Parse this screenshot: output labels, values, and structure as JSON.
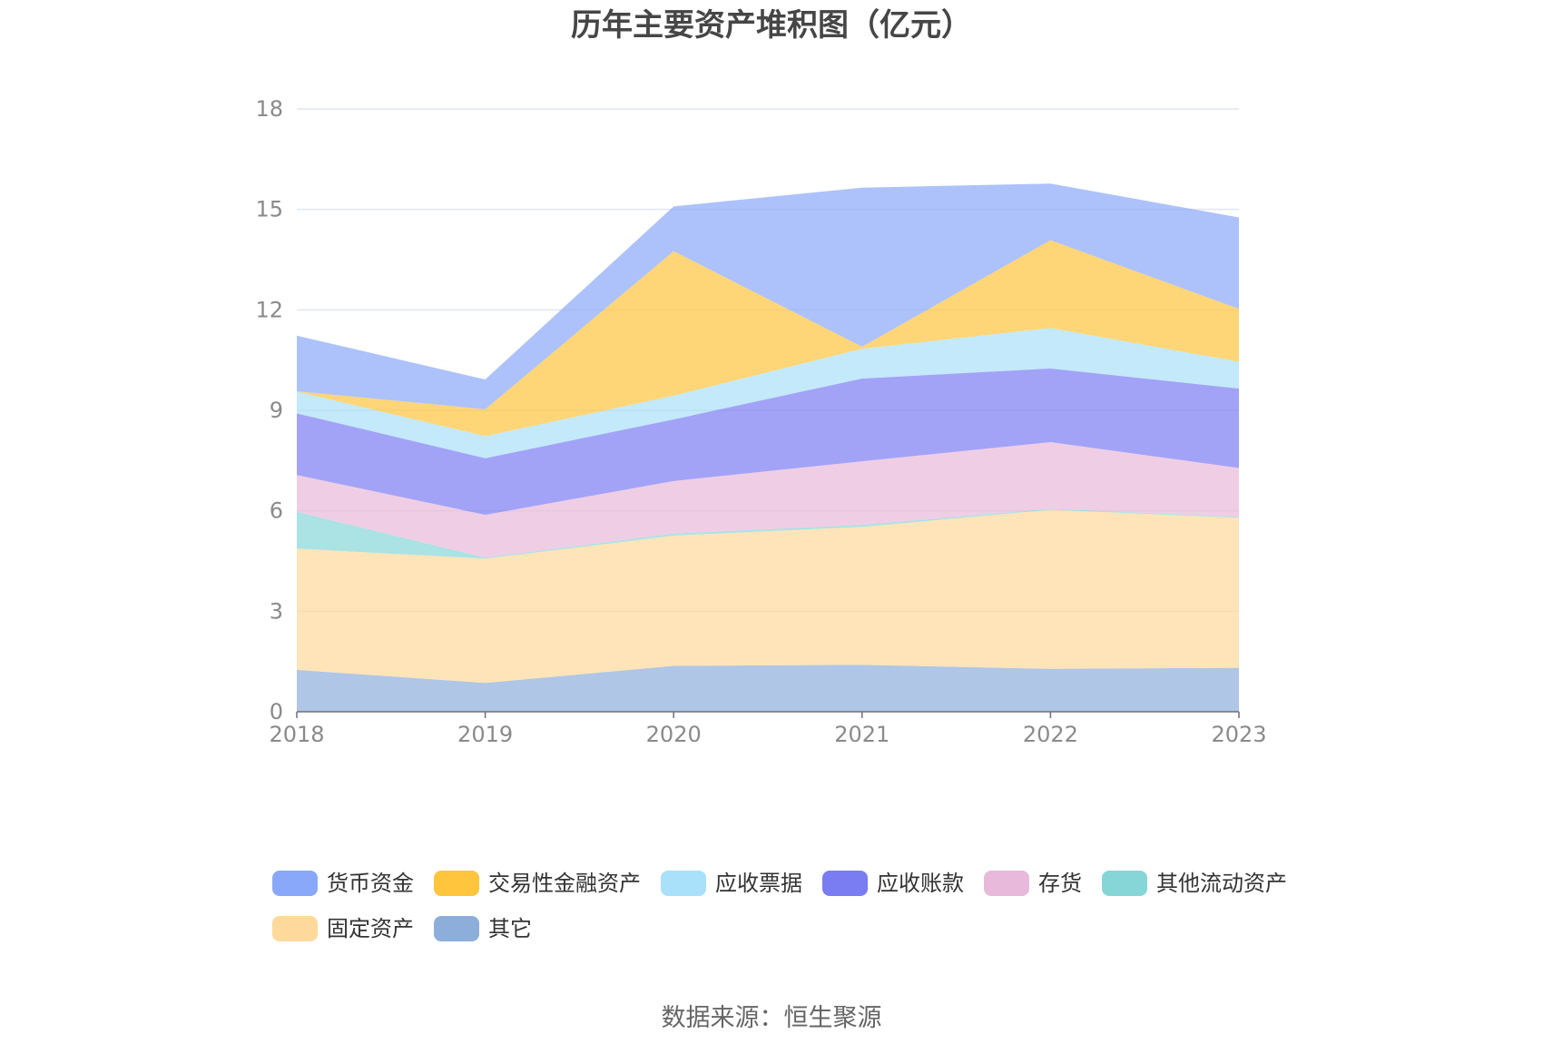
{
  "source": "数据来源：恒生聚源",
  "chart_data": {
    "type": "area",
    "stacked": true,
    "title": "历年主要资产堆积图（亿元）",
    "categories": [
      "2018",
      "2019",
      "2020",
      "2021",
      "2022",
      "2023"
    ],
    "ylim": [
      0,
      18
    ],
    "yticks": [
      0,
      3,
      6,
      9,
      12,
      15,
      18
    ],
    "grid": true,
    "legend_position": "bottom",
    "series": [
      {
        "name": "货币资金",
        "color": "#8aa8fa",
        "values": [
          1.66,
          0.89,
          1.34,
          4.75,
          1.69,
          2.73
        ]
      },
      {
        "name": "交易性金融资产",
        "color": "#ffc53d",
        "values": [
          0.01,
          0.8,
          4.31,
          0.06,
          2.62,
          1.58
        ]
      },
      {
        "name": "应收票据",
        "color": "#a9e0fa",
        "values": [
          0.65,
          0.66,
          0.71,
          0.89,
          1.21,
          0.8
        ]
      },
      {
        "name": "应收账款",
        "color": "#7a7cf2",
        "values": [
          1.84,
          1.69,
          1.84,
          2.47,
          2.2,
          2.37
        ]
      },
      {
        "name": "存货",
        "color": "#e8b9da",
        "values": [
          1.1,
          1.28,
          1.57,
          1.9,
          1.99,
          1.46
        ]
      },
      {
        "name": "其他流动资产",
        "color": "#87d6d7",
        "values": [
          1.1,
          0.03,
          0.06,
          0.06,
          0.03,
          0.03
        ]
      },
      {
        "name": "固定资产",
        "color": "#ffd99b",
        "values": [
          3.62,
          3.71,
          3.89,
          4.12,
          4.75,
          4.48
        ]
      },
      {
        "name": "其它",
        "color": "#8daedb",
        "values": [
          1.25,
          0.86,
          1.37,
          1.4,
          1.28,
          1.31
        ]
      }
    ]
  }
}
